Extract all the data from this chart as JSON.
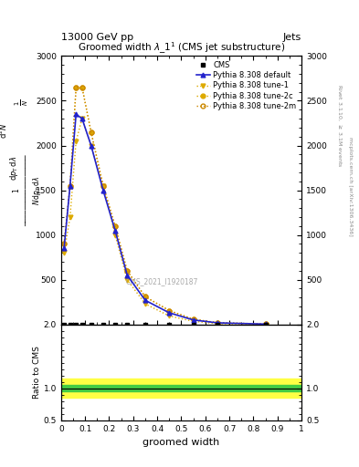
{
  "title": "Groomed width $\\lambda\\_1^1$ (CMS jet substructure)",
  "header_left": "13000 GeV pp",
  "header_right": "Jets",
  "xlabel": "groomed width",
  "ylabel_lines": [
    "$\\mathrm{d}^2N$",
    "$\\mathrm{d}p_\\mathrm{T}\\,\\mathrm{d}\\lambda$"
  ],
  "ylabel_prefix": "$\\frac{1}{N}$",
  "ylabel_ratio": "Ratio to CMS",
  "right_label_top": "Rivet 3.1.10, $\\geq$ 3.1M events",
  "right_label_bottom": "mcplots.cern.ch [arXiv:1306.3436]",
  "watermark": "CMS_2021_I1920187",
  "x_points": [
    0.0125,
    0.0375,
    0.0625,
    0.0875,
    0.125,
    0.175,
    0.225,
    0.275,
    0.35,
    0.45,
    0.55,
    0.65,
    0.85
  ],
  "pythia_default_y": [
    850,
    1550,
    2350,
    2300,
    2000,
    1500,
    1050,
    550,
    270,
    130,
    50,
    18,
    4
  ],
  "pythia_tune1_y": [
    800,
    1200,
    2050,
    2300,
    2000,
    1550,
    1000,
    500,
    230,
    95,
    35,
    9,
    2
  ],
  "pythia_tune2c_y": [
    900,
    1550,
    2650,
    2650,
    2150,
    1550,
    1100,
    600,
    310,
    155,
    58,
    20,
    5
  ],
  "pythia_tune2m_y": [
    900,
    1550,
    2650,
    2650,
    2150,
    1550,
    1100,
    600,
    310,
    155,
    58,
    20,
    5
  ],
  "cms_x": [
    0.0125,
    0.0375,
    0.0625,
    0.0875,
    0.125,
    0.175,
    0.225,
    0.275,
    0.35,
    0.45,
    0.55,
    0.65,
    0.85
  ],
  "ylim_main": [
    0,
    3000
  ],
  "yticks_main": [
    0,
    500,
    1000,
    1500,
    2000,
    2500,
    3000
  ],
  "xlim": [
    0.0,
    1.0
  ],
  "ratio_ylim": [
    0.5,
    2.0
  ],
  "ratio_yticks": [
    0.5,
    1.0,
    2.0
  ],
  "color_default": "#2222cc",
  "color_tune1": "#ddaa00",
  "color_tune2c": "#ddaa00",
  "color_tune2m": "#cc8800",
  "band_yellow": "#ffff44",
  "band_green": "#44cc44"
}
